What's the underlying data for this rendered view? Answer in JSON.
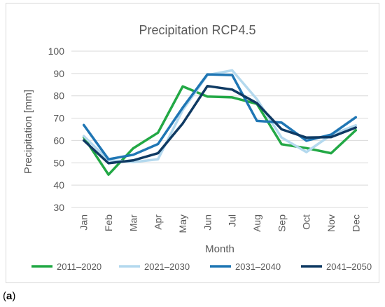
{
  "figure": {
    "panel_label_prefix": "(",
    "panel_label_letter": "a",
    "panel_label_suffix": ")"
  },
  "chart_data": {
    "type": "line",
    "title": "Precipitation RCP4.5",
    "xlabel": "Month",
    "ylabel": "Precipitation [mm]",
    "ylim": [
      30,
      100
    ],
    "yticks": [
      30,
      40,
      50,
      60,
      70,
      80,
      90,
      100
    ],
    "grid": true,
    "legend_position": "bottom",
    "categories": [
      "Jan",
      "Feb",
      "Mar",
      "Apr",
      "May",
      "Jun",
      "Jul",
      "Aug",
      "Sep",
      "Oct",
      "Nov",
      "Dec"
    ],
    "series": [
      {
        "name": "2011–2020",
        "color": "#22a845",
        "values": [
          61.5,
          44.7,
          56.5,
          63.5,
          84.2,
          79.7,
          79.3,
          76.4,
          58.3,
          56.6,
          54.3,
          64.6
        ]
      },
      {
        "name": "2021–2030",
        "color": "#b4d9ee",
        "values": [
          62.0,
          51.2,
          50.3,
          51.6,
          73.6,
          89.3,
          91.4,
          78.5,
          61.3,
          54.8,
          62.5,
          66.8
        ]
      },
      {
        "name": "2031–2040",
        "color": "#1f76b4",
        "values": [
          66.9,
          51.6,
          53.6,
          58.4,
          74.7,
          89.6,
          89.3,
          68.8,
          68.0,
          59.9,
          62.6,
          70.4
        ]
      },
      {
        "name": "2041–2050",
        "color": "#0f3a63",
        "values": [
          60.0,
          49.8,
          51.1,
          54.3,
          67.6,
          84.4,
          82.8,
          76.7,
          65.0,
          61.3,
          61.5,
          65.8
        ]
      }
    ]
  }
}
